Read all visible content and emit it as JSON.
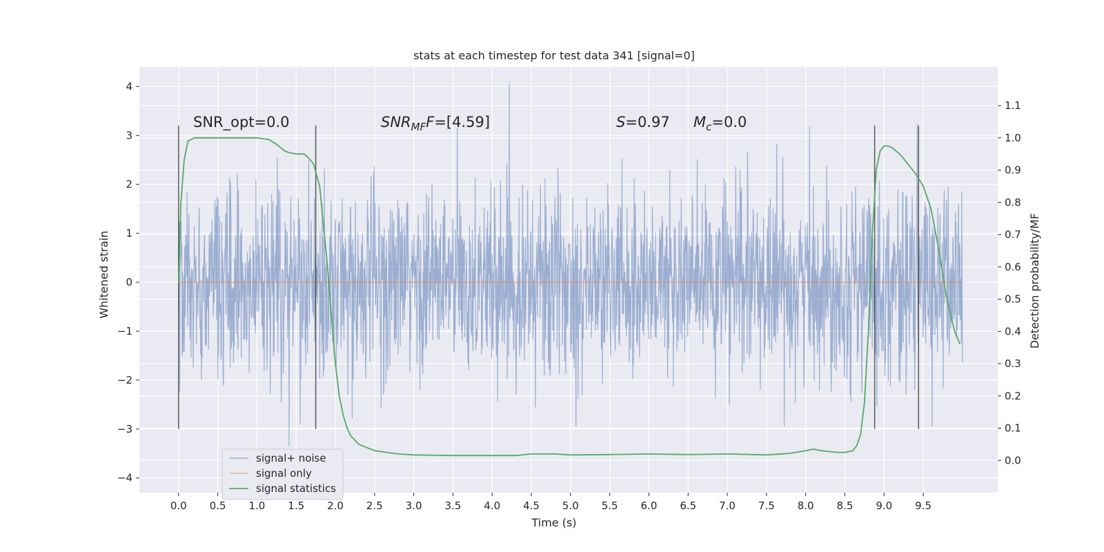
{
  "chart_data": {
    "type": "line",
    "title": "stats at each timestep for test data 341 [signal=0]",
    "xlabel": "Time (s)",
    "ylabel": "Whitened strain",
    "y2label": "Detection probability/MF",
    "xlim": [
      -0.5,
      10.45
    ],
    "ylim": [
      -4.3,
      4.4
    ],
    "y2lim": [
      -0.1,
      1.22
    ],
    "xticks": [
      0.0,
      0.5,
      1.0,
      1.5,
      2.0,
      2.5,
      3.0,
      3.5,
      4.0,
      4.5,
      5.0,
      5.5,
      6.0,
      6.5,
      7.0,
      7.5,
      8.0,
      8.5,
      9.0,
      9.5
    ],
    "xtick_labels": [
      "0.0",
      "0.5",
      "1.0",
      "1.5",
      "2.0",
      "2.5",
      "3.0",
      "3.5",
      "4.0",
      "4.5",
      "5.0",
      "5.5",
      "6.0",
      "6.5",
      "7.0",
      "7.5",
      "8.0",
      "8.5",
      "9.0",
      "9.5"
    ],
    "yticks": [
      -4,
      -3,
      -2,
      -1,
      0,
      1,
      2,
      3,
      4
    ],
    "ytick_labels": [
      "−4",
      "−3",
      "−2",
      "−1",
      "0",
      "1",
      "2",
      "3",
      "4"
    ],
    "y2ticks": [
      0.0,
      0.1,
      0.2,
      0.3,
      0.4,
      0.5,
      0.6,
      0.7,
      0.8,
      0.9,
      1.0,
      1.1
    ],
    "y2tick_labels": [
      "0.0",
      "0.1",
      "0.2",
      "0.3",
      "0.4",
      "0.5",
      "0.6",
      "0.7",
      "0.8",
      "0.9",
      "1.0",
      "1.1"
    ],
    "grid": true,
    "legend_position": "bottom-left",
    "annotations": {
      "snr_opt": "SNR_opt=0.0",
      "snr_mf_main": "SNR",
      "snr_mf_sub": "MF",
      "snr_mf_value": "=[4.59]",
      "s_main": "S",
      "s_value": "=0.97",
      "mc_main": "M",
      "mc_sub": "c",
      "mc_value": "=0.0"
    },
    "vertical_lines": [
      {
        "x": 0.0,
        "ymin": -3.0,
        "ymax": 3.2
      },
      {
        "x": 1.75,
        "ymin": -3.0,
        "ymax": 3.2
      },
      {
        "x": 8.88,
        "ymin": -3.0,
        "ymax": 3.2
      },
      {
        "x": 9.44,
        "ymin": -3.0,
        "ymax": 3.2
      }
    ],
    "series": [
      {
        "name": "signal+ noise",
        "color": "#4c72b0",
        "style": "noise",
        "x_range": [
          0.0,
          10.0
        ],
        "typical_abs": 1.3,
        "peak_max": 4.05,
        "peak_min": -3.35
      },
      {
        "name": "signal only",
        "color": "#dd8452",
        "x": [
          0.0,
          10.0
        ],
        "y": [
          0.0,
          0.0
        ]
      },
      {
        "name": "signal statistics",
        "color": "#55a868",
        "axis": "right",
        "x": [
          0.0,
          0.03,
          0.07,
          0.12,
          0.2,
          0.3,
          0.5,
          0.8,
          1.0,
          1.15,
          1.25,
          1.35,
          1.4,
          1.5,
          1.6,
          1.65,
          1.72,
          1.8,
          1.9,
          1.95,
          2.0,
          2.05,
          2.1,
          2.15,
          2.2,
          2.3,
          2.5,
          2.8,
          3.0,
          3.5,
          4.0,
          4.3,
          4.5,
          4.8,
          5.0,
          5.5,
          6.0,
          6.5,
          7.0,
          7.5,
          7.8,
          8.0,
          8.1,
          8.2,
          8.4,
          8.5,
          8.6,
          8.65,
          8.7,
          8.75,
          8.8,
          8.85,
          8.9,
          8.95,
          9.0,
          9.05,
          9.1,
          9.2,
          9.3,
          9.4,
          9.5,
          9.6,
          9.7,
          9.8,
          9.9,
          9.97
        ],
        "y": [
          0.55,
          0.8,
          0.93,
          0.99,
          1.0,
          1.0,
          1.0,
          1.0,
          1.0,
          0.995,
          0.98,
          0.96,
          0.955,
          0.95,
          0.95,
          0.94,
          0.92,
          0.85,
          0.6,
          0.45,
          0.3,
          0.2,
          0.14,
          0.1,
          0.075,
          0.05,
          0.03,
          0.02,
          0.017,
          0.015,
          0.015,
          0.015,
          0.02,
          0.02,
          0.017,
          0.018,
          0.02,
          0.018,
          0.02,
          0.017,
          0.022,
          0.03,
          0.035,
          0.03,
          0.025,
          0.025,
          0.03,
          0.045,
          0.08,
          0.18,
          0.4,
          0.7,
          0.9,
          0.96,
          0.975,
          0.975,
          0.97,
          0.95,
          0.92,
          0.89,
          0.85,
          0.78,
          0.65,
          0.5,
          0.4,
          0.36
        ]
      }
    ]
  }
}
